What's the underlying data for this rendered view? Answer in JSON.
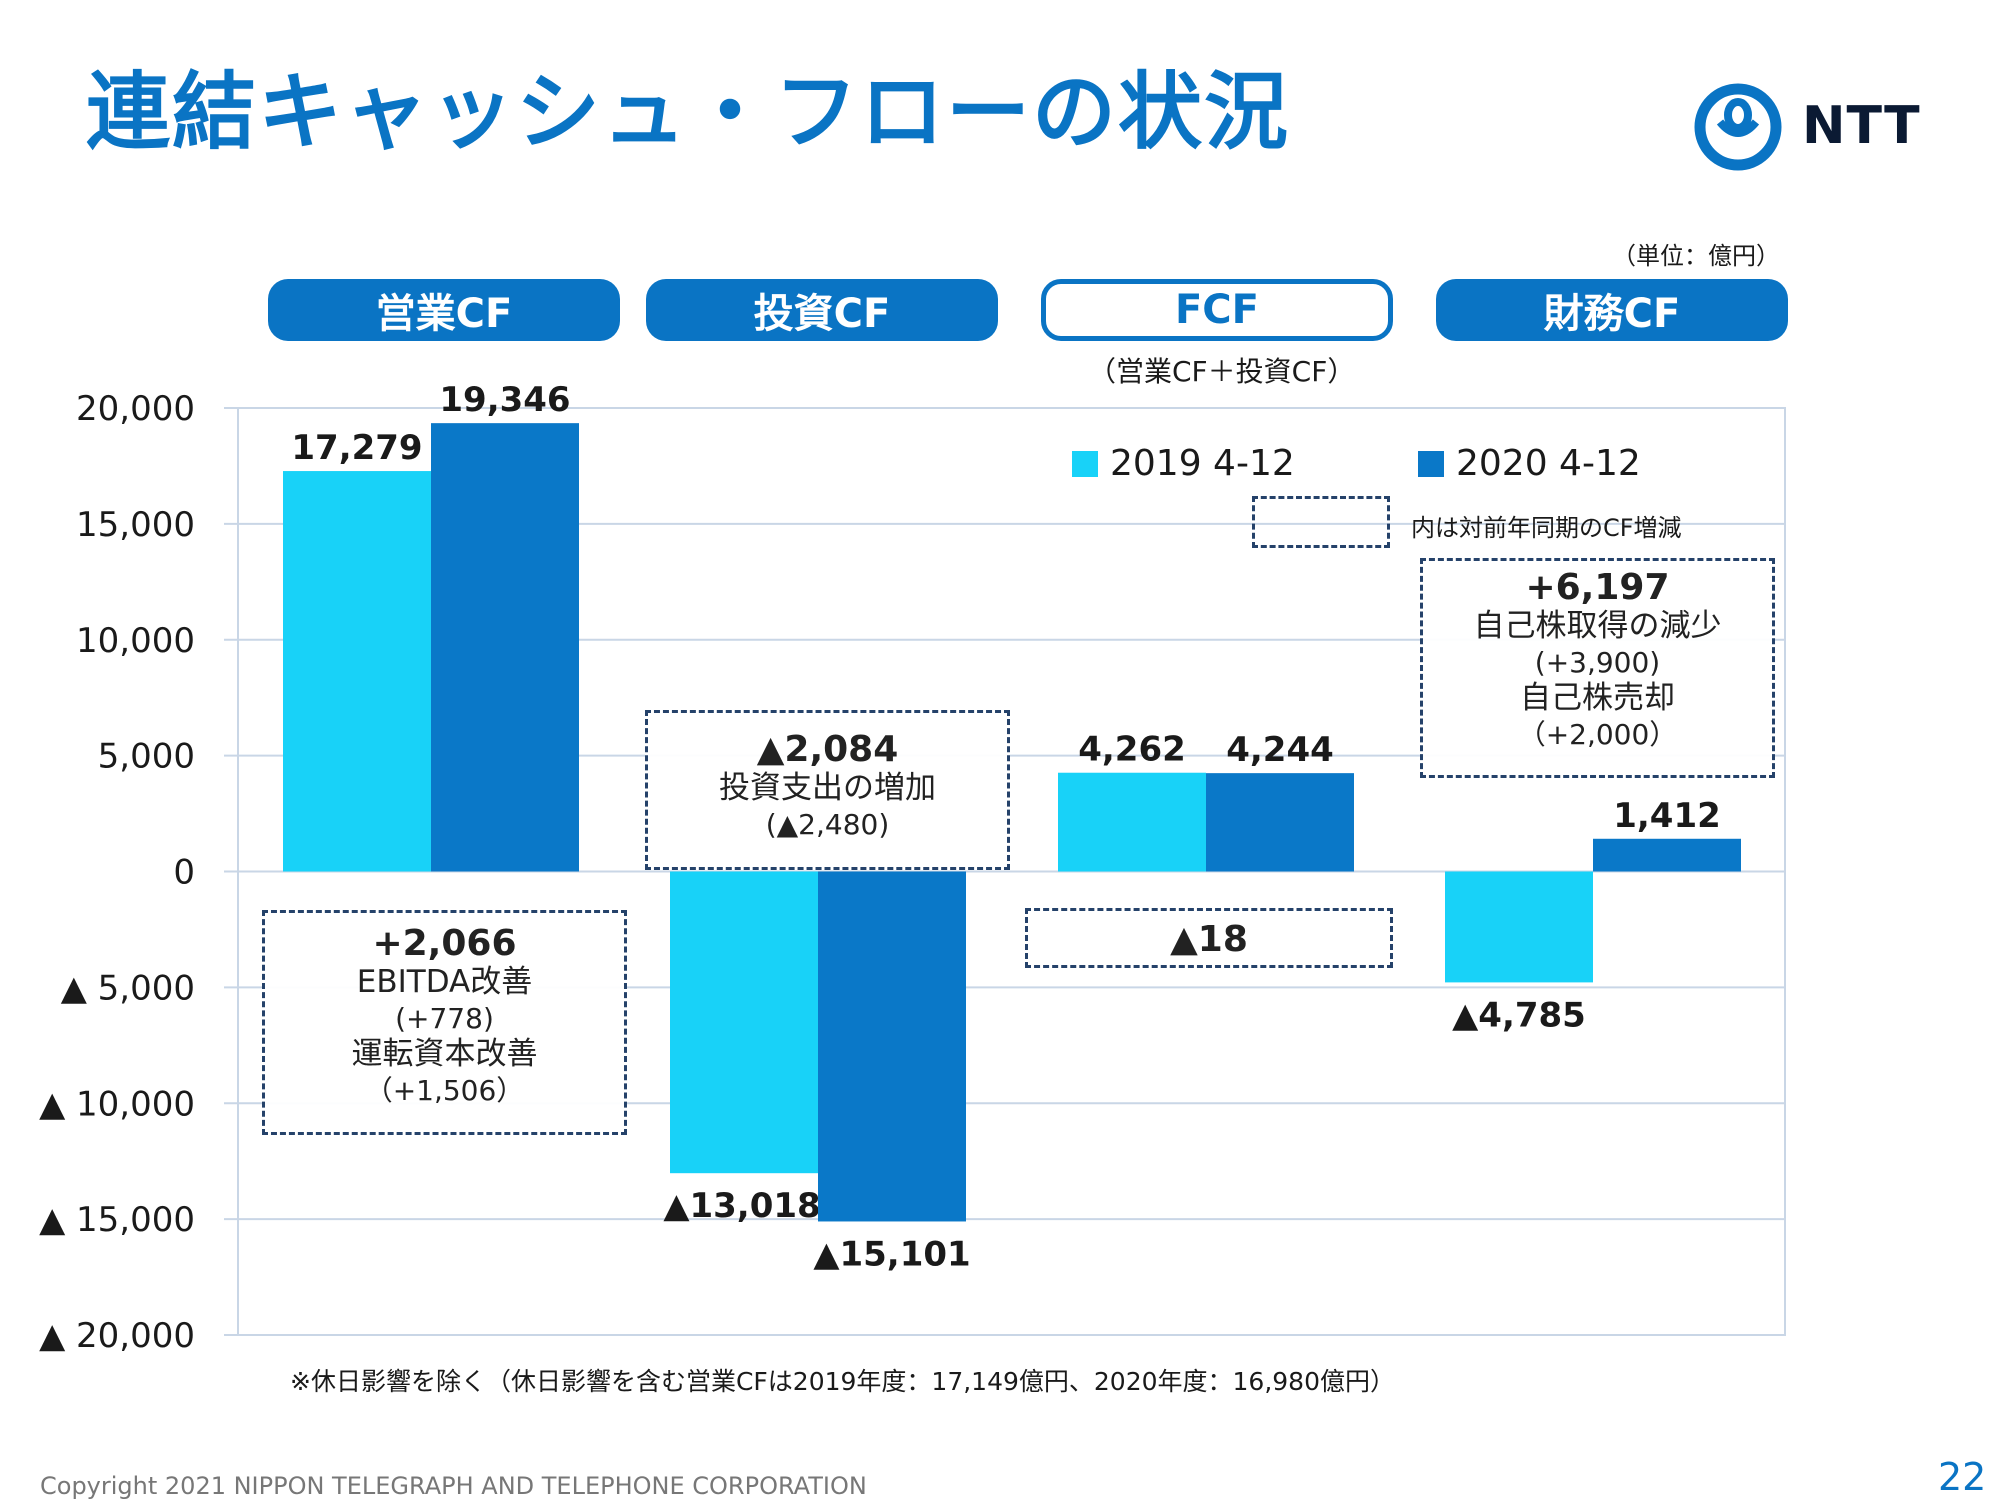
{
  "page": {
    "title": "連結キャッシュ・フローの状況",
    "logo_text": "NTT",
    "unit": "（単位：億円）",
    "note": "※休日影響を除く（休日影響を含む営業CFは2019年度：17,149億円、2020年度：16,980億円）",
    "footer": "Copyright 2021 NIPPON TELEGRAPH AND TELEPHONE CORPORATION",
    "page_number": "22"
  },
  "groups": [
    {
      "label": "営業CF"
    },
    {
      "label": "投資CF"
    },
    {
      "label": "FCF",
      "sub": "（営業CF＋投資CF）"
    },
    {
      "label": "財務CF"
    }
  ],
  "legend": {
    "note": "内は対前年同期のCF増減"
  },
  "annotations": {
    "operating": {
      "delta": "+2,066",
      "line1": "EBITDA改善",
      "line2": "(+778)",
      "line3": "運転資本改善",
      "line4": "（+1,506）"
    },
    "investing": {
      "delta": "▲2,084",
      "line1": "投資支出の増加",
      "line2": "(▲2,480)"
    },
    "fcf": {
      "delta": "▲18"
    },
    "financing": {
      "delta": "+6,197",
      "line1": "自己株取得の減少",
      "line2": "(+3,900)",
      "line3": "自己株売却",
      "line4": "（+2,000）"
    }
  },
  "colors": {
    "series2019": "#18d2f8",
    "series2020": "#0a78c8",
    "brand": "#0a74c4",
    "grid": "#c9d6e6"
  },
  "chart_data": {
    "type": "bar",
    "categories": [
      "営業CF",
      "投資CF",
      "FCF",
      "財務CF"
    ],
    "series": [
      {
        "name": "2019 4-12",
        "values": [
          17279,
          -13018,
          4262,
          -4785
        ],
        "labels": [
          "17,279",
          "▲13,018",
          "4,262",
          "▲4,785"
        ]
      },
      {
        "name": "2020 4-12",
        "values": [
          19346,
          -15101,
          4244,
          1412
        ],
        "labels": [
          "19,346",
          "▲15,101",
          "4,244",
          "1,412"
        ]
      }
    ],
    "ylim": [
      -20000,
      20000
    ],
    "yticks": [
      20000,
      15000,
      10000,
      5000,
      0,
      -5000,
      -10000,
      -15000,
      -20000
    ],
    "ytick_labels": [
      "20,000",
      "15,000",
      "10,000",
      "5,000",
      "0",
      "▲ 5,000",
      "▲ 10,000",
      "▲ 15,000",
      "▲ 20,000"
    ],
    "grid": true,
    "legend_position": "top-right"
  }
}
